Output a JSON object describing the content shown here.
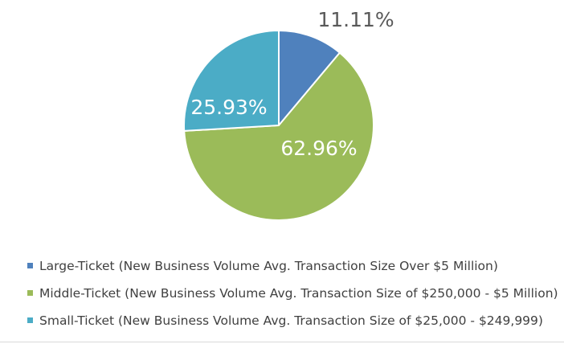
{
  "chart_data": {
    "type": "pie",
    "slices": [
      {
        "name": "Large-Ticket (New Business Volume Avg. Transaction Size Over $5 Million)",
        "value": 11.11,
        "label": "11.11%",
        "color": "#4f81bd"
      },
      {
        "name": "Middle-Ticket (New Business Volume Avg. Transaction Size of $250,000 - $5 Million)",
        "value": 62.96,
        "label": "62.96%",
        "color": "#9bbb59"
      },
      {
        "name": "Small-Ticket (New Business Volume Avg. Transaction Size of $25,000 - $249,999)",
        "value": 25.93,
        "label": "25.93%",
        "color": "#4bacc6"
      }
    ],
    "legend_position": "bottom"
  }
}
